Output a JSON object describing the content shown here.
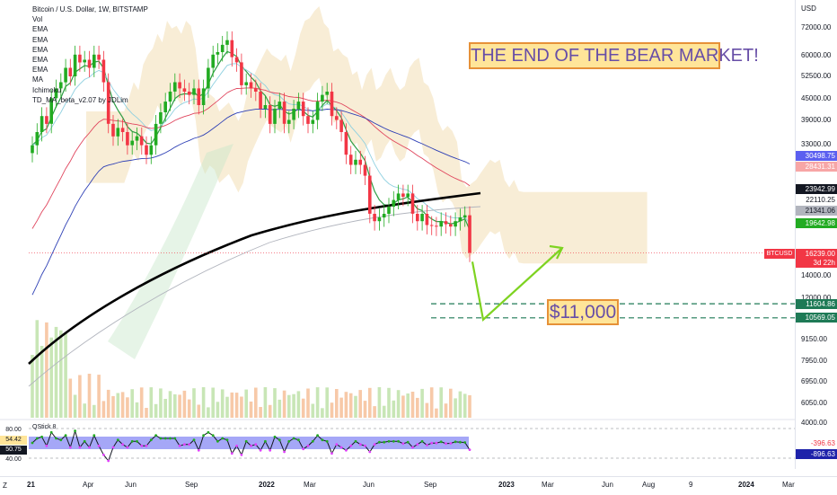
{
  "legend": {
    "title": "Bitcoin / U.S. Dollar, 1W, BITSTAMP",
    "lines": [
      "Vol",
      "EMA",
      "EMA",
      "EMA",
      "EMA",
      "EMA",
      "MA",
      "Ichimoku",
      "TD_MA_beta_v2.07 by JDLim"
    ]
  },
  "banner": "THE END OF THE BEAR MARKET!",
  "target_label": "$11,000",
  "currency": "USD",
  "z_label": "Z",
  "symbol_tag": "BTCUSD",
  "price_axis": {
    "labels": [
      "72000.00",
      "60000.00",
      "52500.00",
      "45000.00",
      "39000.00",
      "33000.00",
      "14000.00",
      "12000.00",
      "9150.00",
      "7950.00",
      "6950.00",
      "6050.00",
      "4000.00"
    ]
  },
  "price_tags": [
    {
      "text": "30498.75",
      "bg": "#5b5ff0",
      "fg": "#ffffff"
    },
    {
      "text": "28431.31",
      "bg": "#f7a6a6",
      "fg": "#ffffff"
    },
    {
      "text": "23942.99",
      "bg": "#131722",
      "fg": "#ffffff"
    },
    {
      "text": "22110.25",
      "bg": "#ffffff",
      "fg": "#131722"
    },
    {
      "text": "21341.06",
      "bg": "#b2b5be",
      "fg": "#131722"
    },
    {
      "text": "19642.98",
      "bg": "#22ab22",
      "fg": "#ffffff"
    },
    {
      "text": "16239.00",
      "bg": "#f23645",
      "fg": "#ffffff"
    },
    {
      "text": "3d 22h",
      "bg": "#f23645",
      "fg": "#ffffff"
    },
    {
      "text": "11604.86",
      "bg": "#1e7a56",
      "fg": "#ffffff"
    },
    {
      "text": "10569.05",
      "bg": "#1e7a56",
      "fg": "#ffffff"
    }
  ],
  "time_axis": {
    "labels": [
      {
        "text": "21",
        "bold": true
      },
      {
        "text": "Apr",
        "bold": false
      },
      {
        "text": "Jun",
        "bold": false
      },
      {
        "text": "Sep",
        "bold": false
      },
      {
        "text": "2022",
        "bold": true
      },
      {
        "text": "Mar",
        "bold": false
      },
      {
        "text": "Jun",
        "bold": false
      },
      {
        "text": "Sep",
        "bold": false
      },
      {
        "text": "2023",
        "bold": true
      },
      {
        "text": "Mar",
        "bold": false
      },
      {
        "text": "Jun",
        "bold": false
      },
      {
        "text": "Aug",
        "bold": false
      },
      {
        "text": "9",
        "bold": false
      },
      {
        "text": "2024",
        "bold": true
      },
      {
        "text": "Mar",
        "bold": false
      }
    ]
  },
  "sub_panel": {
    "legend": "QStick 8",
    "left_values": [
      "80.00",
      "54.42",
      "50.75",
      "40.00"
    ],
    "right_tags": [
      {
        "text": "-396.63",
        "bg": "#ffffff",
        "fg": "#f23645"
      },
      {
        "text": "-896.63",
        "bg": "#1e22aa",
        "fg": "#ffffff"
      }
    ]
  },
  "colors": {
    "up": "#22ab22",
    "down": "#f23645",
    "ema_red": "#e0455d",
    "ema_blue": "#2d3fb5",
    "ma_black": "#000000",
    "tenkan": "#2e9e45",
    "cloud": "#f3dfb5",
    "cloud_green": "#c8e6c9",
    "arrow": "#7ed321",
    "dashed": "#1e7a56"
  },
  "chart_data": {
    "type": "candlestick",
    "title": "Bitcoin / U.S. Dollar, 1W, BITSTAMP",
    "x_range": [
      "2021-01",
      "2024-03"
    ],
    "y_range": [
      6050,
      72000
    ],
    "y_scale": "log",
    "price_levels": {
      "last_price": 16239.0,
      "support_1": 11604.86,
      "support_2": 10569.05
    },
    "closes": [
      33000,
      36000,
      40000,
      38000,
      45000,
      48000,
      50000,
      55000,
      52000,
      60000,
      57000,
      58000,
      55000,
      60000,
      58000,
      50000,
      38000,
      35000,
      37000,
      36000,
      33000,
      34000,
      35000,
      33000,
      31000,
      33000,
      38000,
      41000,
      44000,
      47000,
      50000,
      48000,
      47000,
      46000,
      48000,
      43000,
      48000,
      55000,
      60000,
      61000,
      64000,
      66000,
      59000,
      57000,
      49000,
      50000,
      48000,
      47000,
      42000,
      43000,
      38000,
      42000,
      44000,
      38000,
      39000,
      42000,
      44000,
      40000,
      38000,
      39000,
      44000,
      46000,
      47000,
      40000,
      39000,
      36000,
      31000,
      29000,
      30000,
      29000,
      27000,
      21000,
      20000,
      20500,
      21000,
      22000,
      23000,
      24000,
      23500,
      24000,
      21000,
      20000,
      21000,
      19500,
      19400,
      19300,
      20000,
      19600,
      19300,
      20000,
      20500,
      20800,
      16239
    ],
    "projection": {
      "start_price": 16239,
      "low_price": 10569.05,
      "end_price": 14000
    }
  }
}
